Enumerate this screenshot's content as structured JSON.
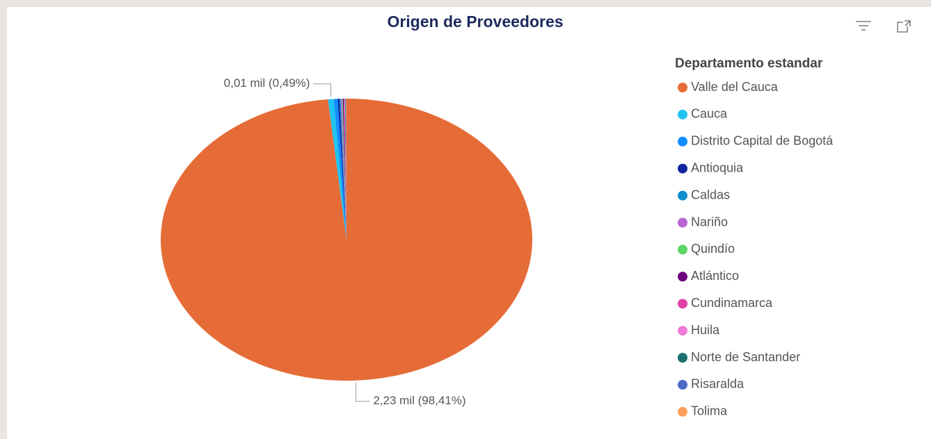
{
  "chart_data": {
    "type": "pie",
    "title": "Origen de Proveedores",
    "legend_title": "Departamento estandar",
    "legend": "right",
    "categories": [
      "Valle del Cauca",
      "Cauca",
      "Distrito Capital de Bogotá",
      "Antioquia",
      "Caldas",
      "Nariño",
      "Quindío",
      "Atlántico",
      "Cundinamarca",
      "Huila",
      "Norte de Santander",
      "Risaralda",
      "Tolima"
    ],
    "values": [
      98.41,
      0.49,
      0.35,
      0.15,
      0.1,
      0.1,
      0.08,
      0.08,
      0.06,
      0.05,
      0.05,
      0.04,
      0.04
    ],
    "value_labels": [
      "2,23 mil (98,41%)",
      "0,01 mil (0,49%)",
      null,
      null,
      null,
      null,
      null,
      null,
      null,
      null,
      null,
      null,
      null
    ],
    "colors": [
      "#E66C37",
      "#20C4F0",
      "#118DFF",
      "#12239E",
      "#0F8FCF",
      "#B865D0",
      "#5BD667",
      "#6B007B",
      "#E044A7",
      "#F07BD8",
      "#1B6F6F",
      "#4C6BC9",
      "#FE9F5B"
    ]
  }
}
